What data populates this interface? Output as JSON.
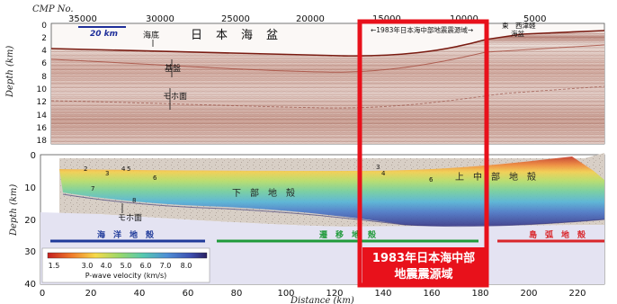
{
  "top_panel": {
    "cmp_label": "CMP No.",
    "cmp_ticks": [
      "35000",
      "30000",
      "25000",
      "20000",
      "15000",
      "10000",
      "5000"
    ],
    "depth_ticks": [
      "0",
      "2",
      "4",
      "6",
      "8",
      "10",
      "12",
      "14",
      "16",
      "18"
    ],
    "ylabel": "Depth (km)",
    "scale_bar": "20 km",
    "labels": {
      "seafloor": "海底",
      "basin": "日　本　海　盆",
      "basement": "基盤",
      "moho": "モホ面",
      "source_area": "←1983年日本海中部地震震源域→",
      "east_margin_1": "東　西津軽",
      "east_margin_2": "海盆"
    }
  },
  "bottom_panel": {
    "depth_ticks": [
      "0",
      "10",
      "20",
      "30",
      "40"
    ],
    "distance_ticks": [
      "0",
      "20",
      "40",
      "60",
      "80",
      "100",
      "120",
      "140",
      "160",
      "180",
      "200",
      "220"
    ],
    "xlabel": "Distance (km)",
    "ylabel": "Depth (km)",
    "layer_numbers": [
      "2",
      "3",
      "4",
      "5",
      "6",
      "7",
      "8",
      "3",
      "4",
      "6"
    ],
    "labels": {
      "lower_crust": "下　部　地　殻",
      "upper_crust": "上　中　部　地　殻",
      "moho": "モホ面"
    },
    "crust_types": [
      {
        "label": "海　洋　地　殻",
        "color": "#1f3a9a"
      },
      {
        "label": "遷　移　地　殻",
        "color": "#1f9a3a"
      },
      {
        "label": "島　弧　地　殻",
        "color": "#d9262b"
      }
    ],
    "colorbar": {
      "ticks": [
        "1.5",
        "3.0",
        "4.0",
        "5.0",
        "6.0",
        "7.0",
        "8.0"
      ],
      "title": "P-wave velocity (km/s)"
    }
  },
  "highlight": {
    "line1": "1983年日本海中部",
    "line2": "地震震源域",
    "color": "#e8111b"
  }
}
